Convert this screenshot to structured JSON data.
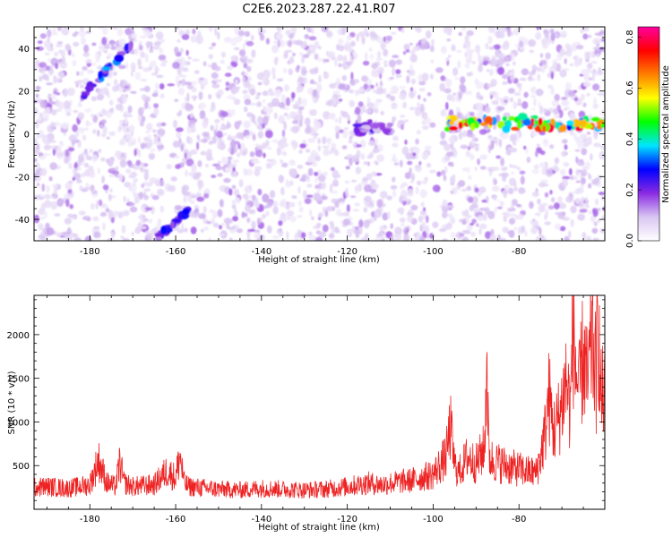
{
  "chart_data": [
    {
      "type": "heatmap",
      "title": "C2E6.2023.287.22.41.R07",
      "xlabel": "Height of straight line (km)",
      "ylabel": "Frequency (Hz)",
      "xlim": [
        -193,
        -60
      ],
      "ylim": [
        -50,
        50
      ],
      "x_ticks": [
        "-180",
        "-160",
        "-140",
        "-120",
        "-100",
        "-80"
      ],
      "y_ticks": [
        "-40",
        "-20",
        "0",
        "20",
        "40"
      ],
      "colorbar": {
        "label": "Normalized spectral amplitude",
        "range": [
          0.0,
          0.84
        ],
        "ticks": [
          "0.0",
          "0.2",
          "0.4",
          "0.6",
          "0.8"
        ],
        "colormap": [
          "#ffffff",
          "#d9c6f2",
          "#8a2be2",
          "#0000ff",
          "#00e5ff",
          "#00ff00",
          "#ffff00",
          "#ff7f00",
          "#ff0000",
          "#ff00a0"
        ]
      },
      "grid": false,
      "features": [
        {
          "x0": -182,
          "x1": -170,
          "y0": 17,
          "y1": 42,
          "peak": 0.35
        },
        {
          "x0": -165,
          "x1": -157,
          "y0": -50,
          "y1": -36,
          "peak": 0.3
        },
        {
          "x0": -118,
          "x1": -110,
          "y0": 1,
          "y1": 5,
          "peak": 0.25
        },
        {
          "x0": -97,
          "x1": -60,
          "y0": 3,
          "y1": 7,
          "peak": 0.8
        }
      ]
    },
    {
      "type": "line",
      "xlabel": "Height of straight line (km)",
      "ylabel": "SNR (10 * v/v)",
      "xlim": [
        -193,
        -60
      ],
      "ylim": [
        0,
        2450
      ],
      "x_ticks": [
        "-180",
        "-160",
        "-140",
        "-120",
        "-100",
        "-80"
      ],
      "y_ticks": [
        "500",
        "1000",
        "1500",
        "2000"
      ],
      "color": "#ee2222",
      "grid": false,
      "x": [
        -193,
        -190,
        -185,
        -180,
        -178,
        -176,
        -174,
        -173,
        -172,
        -170,
        -165,
        -162,
        -160,
        -159,
        -158,
        -157,
        -155,
        -150,
        -145,
        -140,
        -135,
        -130,
        -125,
        -120,
        -115,
        -112,
        -110,
        -105,
        -100,
        -97,
        -96,
        -95,
        -94,
        -92,
        -90,
        -88,
        -87.5,
        -87,
        -86,
        -84,
        -82,
        -80,
        -78,
        -76,
        -75,
        -74,
        -73,
        -72,
        -71,
        -70,
        -69,
        -68,
        -67.5,
        -67,
        -66,
        -65,
        -64,
        -63,
        -62,
        -61.5,
        -61
      ],
      "y": [
        250,
        260,
        240,
        280,
        560,
        300,
        260,
        540,
        300,
        260,
        280,
        440,
        360,
        620,
        300,
        260,
        250,
        230,
        220,
        240,
        230,
        220,
        230,
        260,
        300,
        280,
        300,
        330,
        400,
        600,
        950,
        500,
        420,
        600,
        520,
        700,
        1800,
        600,
        550,
        520,
        480,
        460,
        430,
        420,
        600,
        850,
        1300,
        900,
        1000,
        1200,
        1500,
        1100,
        2250,
        1700,
        1300,
        1800,
        1400,
        2000,
        1500,
        2200,
        1300
      ]
    }
  ]
}
